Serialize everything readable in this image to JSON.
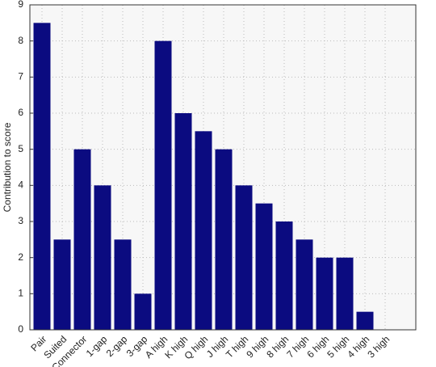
{
  "chart_data": {
    "type": "bar",
    "y_label": "Contribution to score",
    "categories": [
      "Pair",
      "Suited",
      "Connector",
      "1-gap",
      "2-gap",
      "3-gap",
      "A high",
      "K high",
      "Q high",
      "J high",
      "T high",
      "9 high",
      "8 high",
      "7 high",
      "6 high",
      "5 high",
      "4 high",
      "3 high"
    ],
    "values": [
      8.5,
      2.5,
      5,
      4,
      2.5,
      1,
      8,
      6,
      5.5,
      5,
      4,
      3.5,
      3,
      2.5,
      2,
      2,
      0.5,
      0
    ],
    "color": "#0b0b80",
    "ylim": [
      0,
      9
    ],
    "yticks": [
      0,
      1,
      2,
      3,
      4,
      5,
      6,
      7,
      8,
      9
    ],
    "grid": true
  }
}
